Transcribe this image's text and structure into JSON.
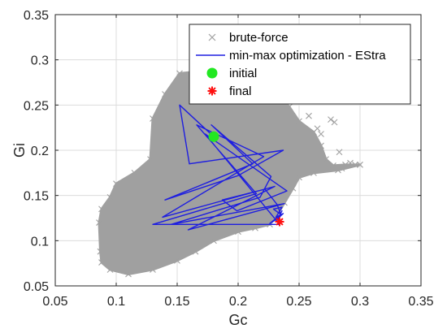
{
  "chart_data": {
    "type": "scatter",
    "xlabel": "Gc",
    "ylabel": "Gi",
    "xlim": [
      0.05,
      0.35
    ],
    "ylim": [
      0.05,
      0.35
    ],
    "xticks": [
      "0.05",
      "0.1",
      "0.15",
      "0.2",
      "0.25",
      "0.3",
      "0.35"
    ],
    "yticks": [
      "0.05",
      "0.1",
      "0.15",
      "0.2",
      "0.25",
      "0.3",
      "0.35"
    ],
    "grid": true,
    "legend_position": "top-right",
    "series": [
      {
        "name": "brute-force",
        "kind": "scatter-region",
        "color": "#a0a0a0",
        "marker": "x",
        "boundary": [
          [
            0.087,
            0.088
          ],
          [
            0.086,
            0.12
          ],
          [
            0.088,
            0.135
          ],
          [
            0.095,
            0.148
          ],
          [
            0.1,
            0.163
          ],
          [
            0.115,
            0.175
          ],
          [
            0.128,
            0.19
          ],
          [
            0.13,
            0.235
          ],
          [
            0.14,
            0.262
          ],
          [
            0.152,
            0.285
          ],
          [
            0.19,
            0.29
          ],
          [
            0.198,
            0.287
          ],
          [
            0.203,
            0.28
          ],
          [
            0.22,
            0.272
          ],
          [
            0.232,
            0.262
          ],
          [
            0.242,
            0.248
          ],
          [
            0.25,
            0.232
          ],
          [
            0.262,
            0.22
          ],
          [
            0.268,
            0.205
          ],
          [
            0.272,
            0.19
          ],
          [
            0.278,
            0.183
          ],
          [
            0.288,
            0.184
          ],
          [
            0.3,
            0.184
          ],
          [
            0.282,
            0.178
          ],
          [
            0.262,
            0.175
          ],
          [
            0.25,
            0.17
          ],
          [
            0.245,
            0.158
          ],
          [
            0.238,
            0.142
          ],
          [
            0.232,
            0.128
          ],
          [
            0.226,
            0.118
          ],
          [
            0.214,
            0.114
          ],
          [
            0.2,
            0.11
          ],
          [
            0.18,
            0.1
          ],
          [
            0.165,
            0.088
          ],
          [
            0.15,
            0.078
          ],
          [
            0.13,
            0.068
          ],
          [
            0.11,
            0.063
          ],
          [
            0.095,
            0.068
          ],
          [
            0.088,
            0.076
          ]
        ],
        "outliers": [
          [
            0.276,
            0.234
          ],
          [
            0.279,
            0.231
          ],
          [
            0.268,
            0.218
          ],
          [
            0.258,
            0.238
          ],
          [
            0.265,
            0.224
          ],
          [
            0.283,
            0.198
          ],
          [
            0.292,
            0.186
          ],
          [
            0.296,
            0.184
          ],
          [
            0.285,
            0.18
          ]
        ]
      },
      {
        "name": "min-max optimization - EStra",
        "kind": "line",
        "color": "#1e1ee0",
        "x": [
          0.18,
          0.152,
          0.16,
          0.237,
          0.2,
          0.14,
          0.212,
          0.178,
          0.227,
          0.218,
          0.145,
          0.238,
          0.159,
          0.23,
          0.138,
          0.221,
          0.166,
          0.215,
          0.13,
          0.234,
          0.173,
          0.24,
          0.199,
          0.187,
          0.222,
          0.232,
          0.235,
          0.229,
          0.236,
          0.231,
          0.237,
          0.233,
          0.236,
          0.234,
          0.226,
          0.233,
          0.234
        ],
        "y": [
          0.215,
          0.25,
          0.185,
          0.2,
          0.172,
          0.145,
          0.185,
          0.228,
          0.171,
          0.148,
          0.118,
          0.141,
          0.112,
          0.16,
          0.126,
          0.193,
          0.228,
          0.152,
          0.118,
          0.118,
          0.218,
          0.155,
          0.133,
          0.145,
          0.157,
          0.14,
          0.129,
          0.135,
          0.137,
          0.126,
          0.13,
          0.125,
          0.133,
          0.128,
          0.119,
          0.125,
          0.121
        ]
      },
      {
        "name": "initial",
        "kind": "point",
        "color": "#22e822",
        "marker": "circle",
        "x": [
          0.18
        ],
        "y": [
          0.215
        ]
      },
      {
        "name": "final",
        "kind": "point",
        "color": "#ff1010",
        "marker": "asterisk",
        "x": [
          0.234
        ],
        "y": [
          0.121
        ]
      }
    ]
  }
}
